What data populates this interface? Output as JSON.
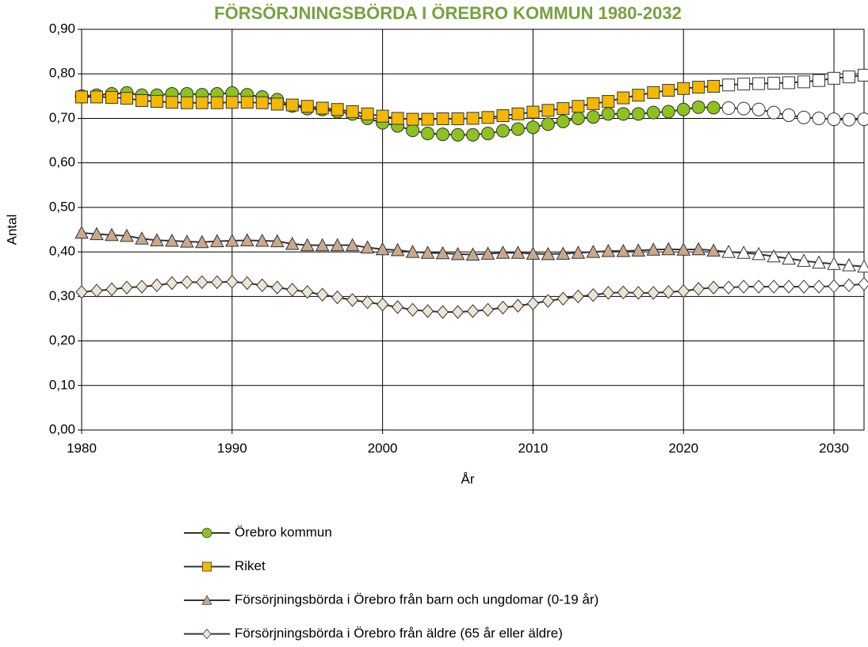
{
  "chart_data": {
    "type": "line",
    "title": "FÖRSÖRJNINGSBÖRDA I ÖREBRO KOMMUN 1980-2032",
    "title_color": "#77a13f",
    "x_label": "År",
    "y_label": "Antal",
    "x": [
      1980,
      1981,
      1982,
      1983,
      1984,
      1985,
      1986,
      1987,
      1988,
      1989,
      1990,
      1991,
      1992,
      1993,
      1994,
      1995,
      1996,
      1997,
      1998,
      1999,
      2000,
      2001,
      2002,
      2003,
      2004,
      2005,
      2006,
      2007,
      2008,
      2009,
      2010,
      2011,
      2012,
      2013,
      2014,
      2015,
      2016,
      2017,
      2018,
      2019,
      2020,
      2021,
      2022,
      2023,
      2024,
      2025,
      2026,
      2027,
      2028,
      2029,
      2030,
      2031,
      2032
    ],
    "xlim": [
      1980,
      2032
    ],
    "xticks": [
      1980,
      1990,
      2000,
      2010,
      2020,
      2030
    ],
    "ylim": [
      0,
      0.9
    ],
    "yticks": [
      {
        "value": 0,
        "label": "0,00"
      },
      {
        "value": 0.1,
        "label": "0,10"
      },
      {
        "value": 0.2,
        "label": "0,20"
      },
      {
        "value": 0.3,
        "label": "0,30"
      },
      {
        "value": 0.4,
        "label": "0,40"
      },
      {
        "value": 0.5,
        "label": "0,50"
      },
      {
        "value": 0.6,
        "label": "0,60"
      },
      {
        "value": 0.7,
        "label": "0,70"
      },
      {
        "value": 0.8,
        "label": "0,80"
      },
      {
        "value": 0.9,
        "label": "0,90"
      }
    ],
    "grid": true,
    "legend": "bottom",
    "line_color": "#333333",
    "forecast_from": 2023,
    "forecast_fill": "#ffffff",
    "series": [
      {
        "name": "Örebro kommun",
        "color": "#8dc21f",
        "marker": "circle",
        "values": [
          0.75,
          0.752,
          0.755,
          0.757,
          0.752,
          0.752,
          0.755,
          0.755,
          0.753,
          0.755,
          0.757,
          0.753,
          0.748,
          0.742,
          0.728,
          0.722,
          0.72,
          0.715,
          0.71,
          0.7,
          0.69,
          0.683,
          0.673,
          0.666,
          0.664,
          0.663,
          0.663,
          0.666,
          0.672,
          0.676,
          0.68,
          0.687,
          0.693,
          0.7,
          0.703,
          0.71,
          0.71,
          0.71,
          0.713,
          0.715,
          0.72,
          0.725,
          0.724,
          0.723,
          0.722,
          0.72,
          0.713,
          0.707,
          0.702,
          0.7,
          0.698,
          0.697,
          0.698
        ]
      },
      {
        "name": "Riket",
        "color": "#f5b800",
        "marker": "square",
        "values": [
          0.748,
          0.748,
          0.747,
          0.745,
          0.74,
          0.738,
          0.736,
          0.735,
          0.735,
          0.735,
          0.736,
          0.736,
          0.735,
          0.732,
          0.73,
          0.727,
          0.723,
          0.72,
          0.715,
          0.71,
          0.705,
          0.7,
          0.698,
          0.698,
          0.699,
          0.699,
          0.7,
          0.702,
          0.706,
          0.71,
          0.714,
          0.718,
          0.722,
          0.727,
          0.733,
          0.738,
          0.746,
          0.752,
          0.758,
          0.763,
          0.767,
          0.77,
          0.772,
          0.775,
          0.777,
          0.778,
          0.779,
          0.78,
          0.782,
          0.785,
          0.79,
          0.793,
          0.797
        ]
      },
      {
        "name": "Försörjningsbörda i Örebro från barn och ungdomar (0-19 år)",
        "color": "#c9a98b",
        "marker": "triangle",
        "values": [
          0.443,
          0.44,
          0.438,
          0.436,
          0.43,
          0.426,
          0.425,
          0.423,
          0.422,
          0.424,
          0.425,
          0.426,
          0.425,
          0.424,
          0.418,
          0.415,
          0.415,
          0.415,
          0.415,
          0.41,
          0.406,
          0.404,
          0.4,
          0.398,
          0.397,
          0.395,
          0.394,
          0.396,
          0.398,
          0.398,
          0.396,
          0.395,
          0.396,
          0.398,
          0.4,
          0.402,
          0.402,
          0.403,
          0.405,
          0.406,
          0.405,
          0.406,
          0.403,
          0.4,
          0.398,
          0.395,
          0.39,
          0.385,
          0.38,
          0.376,
          0.373,
          0.37,
          0.367
        ]
      },
      {
        "name": "Försörjningsbörda i Örebro från äldre (65 år eller äldre)",
        "color": "#ede5d3",
        "marker": "diamond",
        "values": [
          0.31,
          0.313,
          0.316,
          0.32,
          0.322,
          0.325,
          0.33,
          0.332,
          0.332,
          0.332,
          0.333,
          0.33,
          0.325,
          0.32,
          0.315,
          0.31,
          0.304,
          0.298,
          0.292,
          0.287,
          0.282,
          0.276,
          0.27,
          0.267,
          0.265,
          0.265,
          0.267,
          0.27,
          0.275,
          0.279,
          0.284,
          0.29,
          0.295,
          0.3,
          0.303,
          0.308,
          0.309,
          0.308,
          0.308,
          0.31,
          0.312,
          0.317,
          0.32,
          0.32,
          0.322,
          0.322,
          0.322,
          0.322,
          0.322,
          0.322,
          0.323,
          0.325,
          0.328
        ]
      }
    ]
  }
}
